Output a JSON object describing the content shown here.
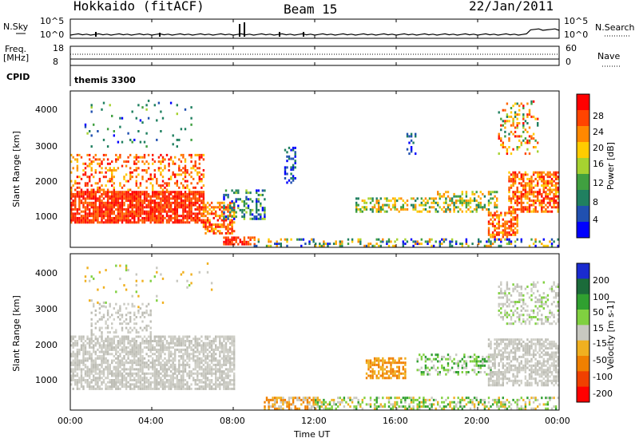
{
  "header": {
    "station": "Hokkaido (fitACF)",
    "beam": "Beam 15",
    "date": "22/Jan/2011"
  },
  "top_panels": {
    "nsky_label": "N.Sky",
    "nsky_ticks": [
      "10^5",
      "10^0"
    ],
    "nsearch_label": "N.Search",
    "nsearch_ticks": [
      "10^5",
      "10^0"
    ],
    "freq_label": "Freq.",
    "freq_unit": "[MHz]",
    "freq_ticks": [
      "18",
      "8"
    ],
    "nave_label": "Nave",
    "nave_ticks": [
      "60",
      "0"
    ],
    "cpid_label": "CPID",
    "cpid_value": "themis 3300"
  },
  "chart_data": [
    {
      "type": "heatmap",
      "title": "",
      "xlabel": "Time UT",
      "ylabel": "Slant Range [km]",
      "xlim": [
        0,
        24
      ],
      "ylim": [
        180,
        4500
      ],
      "yticks": [
        "1000",
        "2000",
        "3000",
        "4000"
      ],
      "colorbar_label": "Power [dB]",
      "colorbar_ticks": [
        "28",
        "24",
        "20",
        "16",
        "12",
        "8",
        "4"
      ],
      "colorbar_colors": [
        "#ff0000",
        "#ff4400",
        "#ff8800",
        "#ffcc00",
        "#a6d230",
        "#40a040",
        "#208060",
        "#2050b0",
        "#0000ff"
      ]
    },
    {
      "type": "heatmap",
      "title": "",
      "xlabel": "Time UT",
      "ylabel": "Slant Range [km]",
      "xlim": [
        0,
        24
      ],
      "ylim": [
        180,
        4500
      ],
      "yticks": [
        "1000",
        "2000",
        "3000",
        "4000"
      ],
      "colorbar_label": "Velocity [m s-1]",
      "colorbar_ticks": [
        "200",
        "100",
        "50",
        "15",
        "-15",
        "-50",
        "-100",
        "-200"
      ],
      "colorbar_colors": [
        "#1a2bd0",
        "#1b6b3a",
        "#30a030",
        "#80d040",
        "#c8c8c0",
        "#f0b020",
        "#f08000",
        "#f04000",
        "#ff0000"
      ]
    }
  ],
  "xaxis": {
    "ticks": [
      "00:00",
      "04:00",
      "08:00",
      "12:00",
      "16:00",
      "20:00",
      "00:00"
    ],
    "label": "Time UT"
  }
}
